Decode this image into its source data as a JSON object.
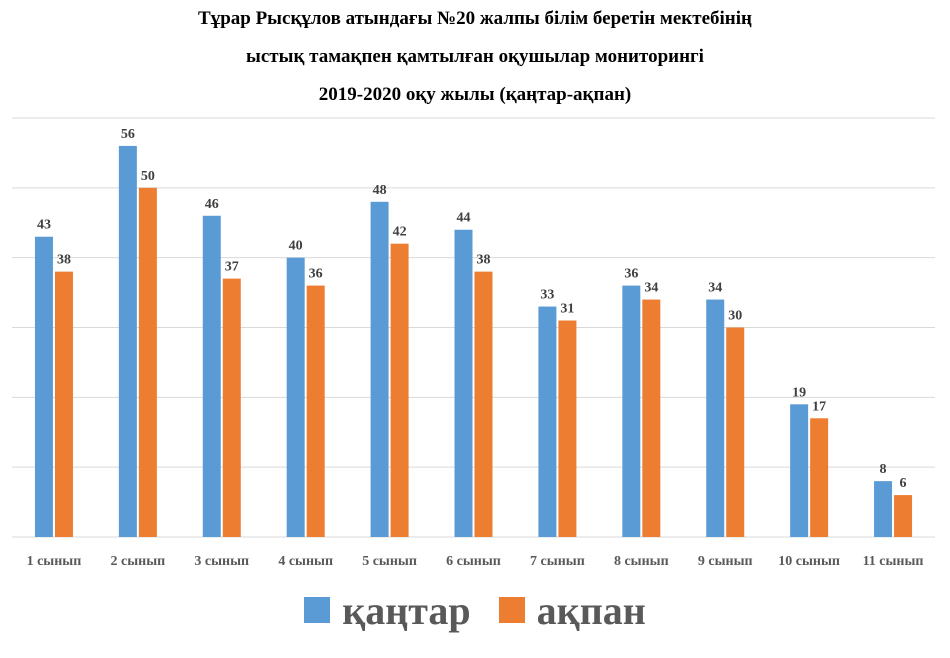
{
  "chart_data": {
    "type": "bar",
    "title_lines": [
      "Тұрар Рысқұлов атындағы №20 жалпы білім беретін мектебінің",
      "ыстық тамақпен қамтылған оқушылар мониторингі",
      "2019-2020 оқу жылы (қаңтар-ақпан)"
    ],
    "categories": [
      "1 сынып",
      "2 сынып",
      "3 сынып",
      "4 сынып",
      "5 сынып",
      "6 сынып",
      "7 сынып",
      "8 сынып",
      "9 сынып",
      "10 сынып",
      "11 сынып"
    ],
    "series": [
      {
        "name": "қаңтар",
        "color": "#5B9BD5",
        "values": [
          43,
          56,
          46,
          40,
          48,
          44,
          33,
          36,
          34,
          19,
          8
        ]
      },
      {
        "name": "ақпан",
        "color": "#ED7D31",
        "values": [
          38,
          50,
          37,
          36,
          42,
          38,
          31,
          34,
          30,
          17,
          6
        ]
      }
    ],
    "ylim": [
      0,
      60
    ],
    "grid": true,
    "legend_position": "bottom",
    "data_labels": true
  }
}
